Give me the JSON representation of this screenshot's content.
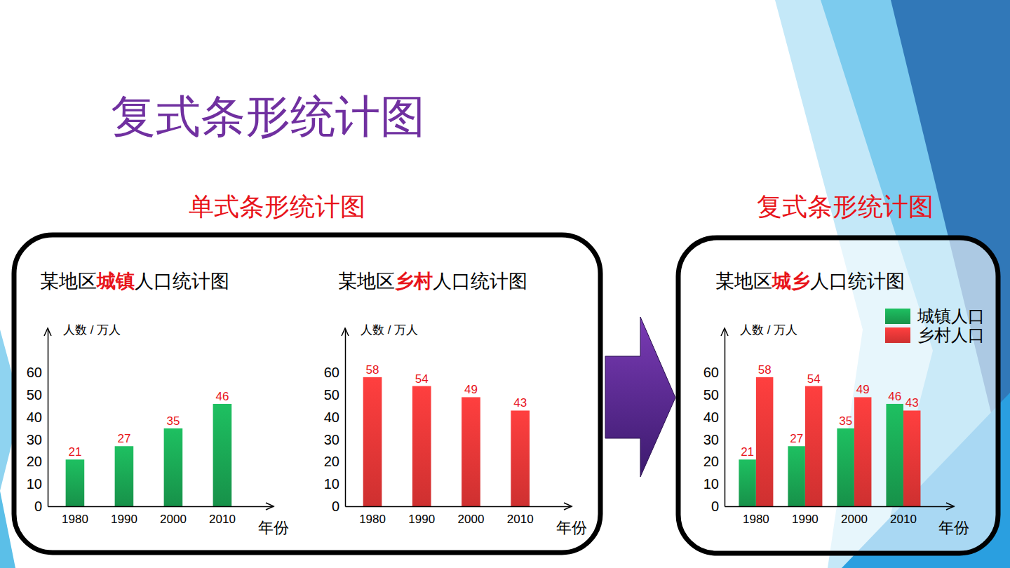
{
  "title": "复式条形统计图",
  "headings": [
    "单式条形统计图",
    "复式条形统计图"
  ],
  "chart_data": [
    {
      "type": "bar",
      "title": "某地区城镇人口统计图",
      "y_label": "人数 / 万人",
      "x_label": "年份",
      "categories": [
        "1980",
        "1990",
        "2000",
        "2010"
      ],
      "values": [
        21,
        27,
        35,
        46
      ],
      "color": "#1cb35a",
      "ylim": [
        0,
        80
      ],
      "yticks": [
        0,
        10,
        20,
        30,
        40,
        50,
        60
      ],
      "grid": false,
      "data_labels": true
    },
    {
      "type": "bar",
      "title": "某地区乡村人口统计图",
      "y_label": "人数 / 万人",
      "x_label": "年份",
      "categories": [
        "1980",
        "1990",
        "2000",
        "2010"
      ],
      "values": [
        58,
        54,
        49,
        43
      ],
      "color": "#ff3b3b",
      "ylim": [
        0,
        80
      ],
      "yticks": [
        0,
        10,
        20,
        30,
        40,
        50,
        60
      ],
      "grid": false,
      "data_labels": true
    },
    {
      "type": "bar",
      "title": "某地区城乡人口统计图",
      "y_label": "人数 / 万人",
      "x_label": "年份",
      "categories": [
        "1980",
        "1990",
        "2000",
        "2010"
      ],
      "series": [
        {
          "name": "城镇人口",
          "color": "#1cb35a",
          "values": [
            21,
            27,
            35,
            46
          ]
        },
        {
          "name": "乡村人口",
          "color": "#ff3b3b",
          "values": [
            58,
            54,
            49,
            43
          ]
        }
      ],
      "ylim": [
        0,
        80
      ],
      "yticks": [
        0,
        10,
        20,
        30,
        40,
        50,
        60
      ],
      "grid": false,
      "data_labels": true,
      "legend": "upper right"
    }
  ]
}
